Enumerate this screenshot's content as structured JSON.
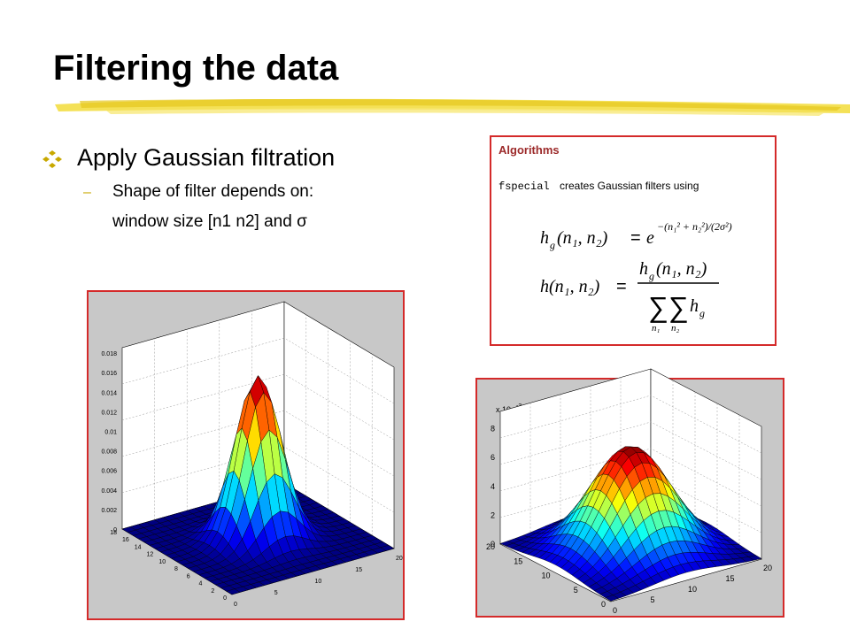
{
  "title": "Filtering the data",
  "bullets": [
    {
      "text": "Apply Gaussian filtration",
      "sub": [
        {
          "lines": [
            "Shape of filter depends on:",
            "window size [n1 n2] and σ"
          ]
        }
      ]
    }
  ],
  "algorithm_box": {
    "heading": "Algorithms",
    "intro_code": "fspecial",
    "intro": "creates Gaussian filters using",
    "formula_1": {
      "lhs": "h",
      "lhs_sub": "g",
      "args": "(n₁, n₂)",
      "eq": "=",
      "base": "e",
      "exponent": "−(n₁² + n₂²)/(2σ²)"
    },
    "formula_2": {
      "lhs": "h(n₁, n₂)",
      "eq": "=",
      "num": "h",
      "num_sub": "g",
      "num_args": "(n₁, n₂)",
      "sums": "∑∑",
      "sum_indices": [
        "n₁",
        "n₂"
      ],
      "term": "h",
      "term_sub": "g"
    }
  },
  "left_plot": {
    "z_ticks": [
      "0",
      "0.002",
      "0.004",
      "0.006",
      "0.008",
      "0.01",
      "0.012",
      "0.014",
      "0.016",
      "0.018"
    ],
    "y_ticks": [
      "0",
      "2",
      "4",
      "6",
      "8",
      "10",
      "12",
      "14",
      "16",
      "18"
    ],
    "x_ticks": [
      "0",
      "5",
      "10",
      "15",
      "20"
    ]
  },
  "right_plot": {
    "scale_label": "x 10",
    "scale_exponent": "-3",
    "z_ticks": [
      "0",
      "2",
      "4",
      "6",
      "8"
    ],
    "y_ticks": [
      "0",
      "5",
      "10",
      "15",
      "20"
    ],
    "x_ticks": [
      "0",
      "5",
      "10",
      "15",
      "20"
    ]
  }
}
